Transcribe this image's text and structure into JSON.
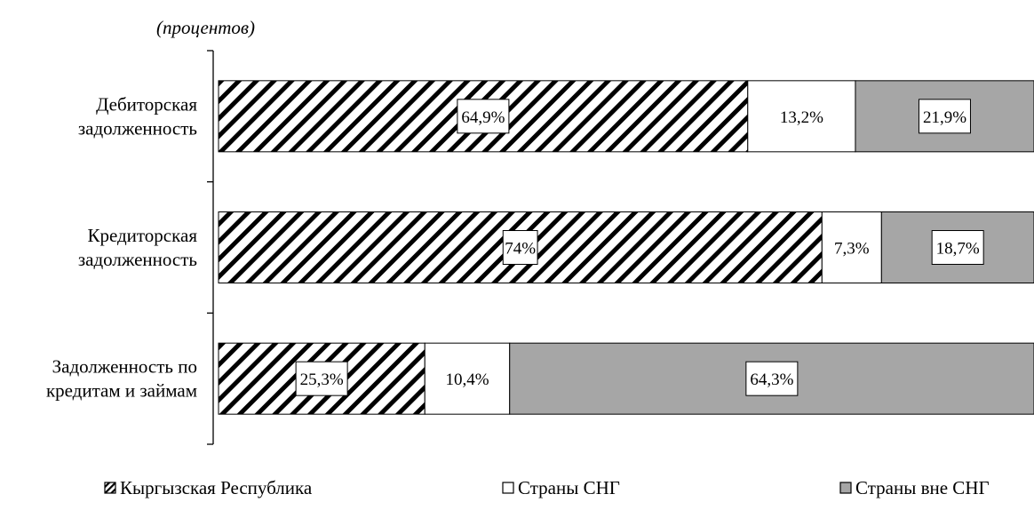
{
  "chart_data": {
    "type": "bar",
    "orientation": "horizontal",
    "stacked": "100%",
    "subtitle": "(процентов)",
    "categories": [
      [
        "Дебиторская",
        "задолженность"
      ],
      [
        "Кредиторская",
        "задолженность"
      ],
      [
        "Задолженность по",
        "кредитам и займам"
      ]
    ],
    "series": [
      {
        "name": "Кыргызская Республика",
        "values": [
          64.9,
          74.0,
          25.3
        ],
        "labels": [
          "64,9%",
          "74%",
          "25,3%"
        ],
        "pattern": "diagonal-hatch",
        "color": "#000000"
      },
      {
        "name": "Страны СНГ",
        "values": [
          13.2,
          7.3,
          10.4
        ],
        "labels": [
          "13,2%",
          "7,3%",
          "10,4%"
        ],
        "pattern": "solid",
        "color": "#ffffff"
      },
      {
        "name": "Страны вне СНГ",
        "values": [
          21.9,
          18.7,
          64.3
        ],
        "labels": [
          "21,9%",
          "18,7%",
          "64,3%"
        ],
        "pattern": "solid",
        "color": "#a6a6a6"
      }
    ],
    "xlim": [
      0,
      100
    ],
    "grid": false,
    "legend": "bottom"
  }
}
